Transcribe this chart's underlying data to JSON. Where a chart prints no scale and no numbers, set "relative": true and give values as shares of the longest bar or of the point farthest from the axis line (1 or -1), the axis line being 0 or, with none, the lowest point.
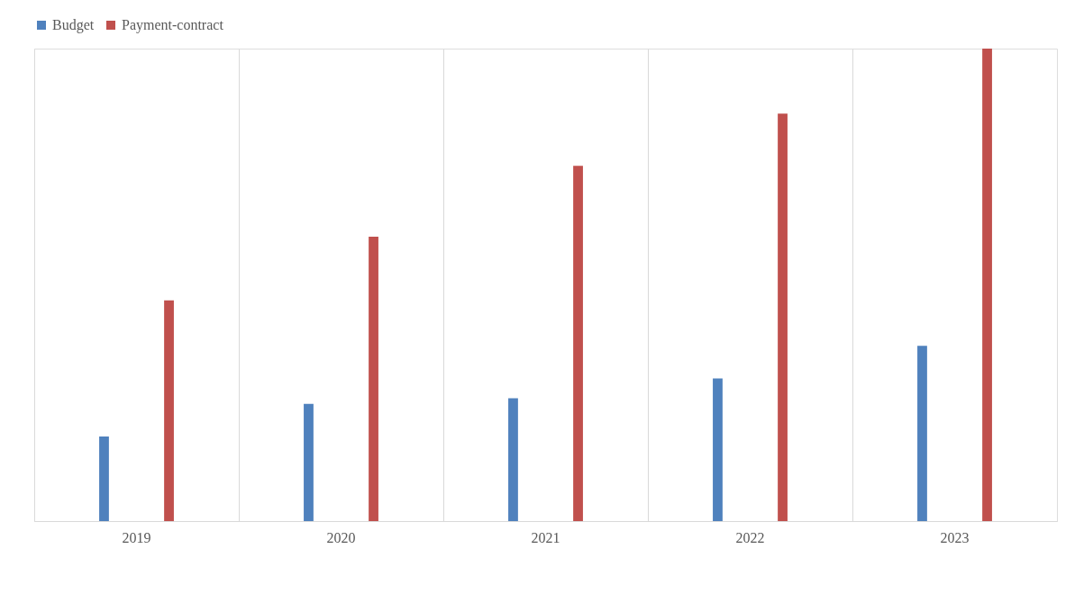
{
  "chart_data": {
    "type": "bar",
    "relative": true,
    "categories": [
      "2019",
      "2020",
      "2021",
      "2022",
      "2023"
    ],
    "series": [
      {
        "name": "Budget",
        "color": "#4f81bd",
        "values": [
          0.179,
          0.248,
          0.26,
          0.302,
          0.371
        ]
      },
      {
        "name": "Payment-contract",
        "color": "#c0504d",
        "values": [
          0.467,
          0.602,
          0.752,
          0.8625,
          1
        ]
      }
    ],
    "grid": "x",
    "legend": "top"
  }
}
